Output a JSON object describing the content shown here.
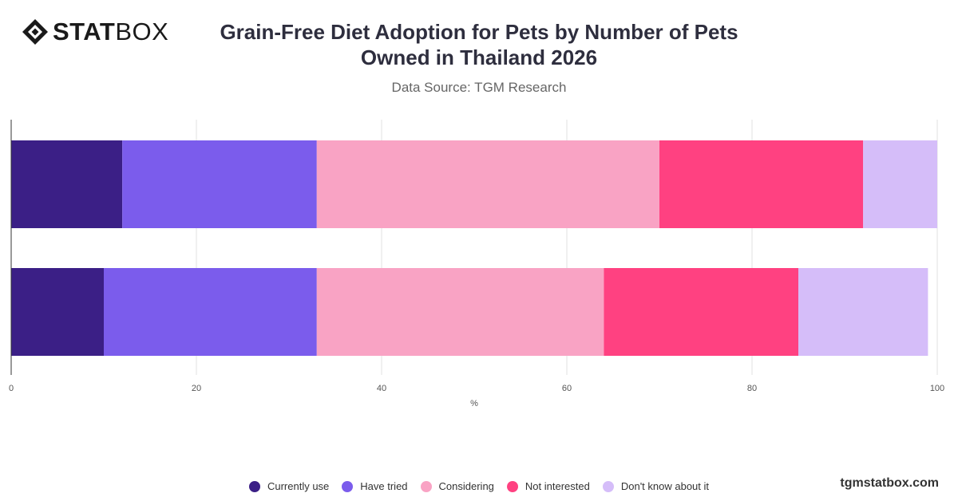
{
  "brand": {
    "logo_stat": "STAT",
    "logo_box": "BOX",
    "watermark": "tgmstatbox.com"
  },
  "chart_data": {
    "type": "bar",
    "orientation": "horizontal",
    "stacked": true,
    "title": "Grain-Free Diet Adoption for Pets by Number of Pets Owned in Thailand 2026",
    "subtitle": "Data Source: TGM Research",
    "xlabel": "%",
    "ylabel": "",
    "xlim": [
      0,
      100
    ],
    "xticks": [
      0,
      20,
      40,
      60,
      80,
      100
    ],
    "grid": true,
    "legend_position": "bottom",
    "categories": [
      "",
      ""
    ],
    "series": [
      {
        "name": "Currently use",
        "color": "#3b1f86",
        "values": [
          12,
          10
        ]
      },
      {
        "name": "Have tried",
        "color": "#7b5cec",
        "values": [
          21,
          23
        ]
      },
      {
        "name": "Considering",
        "color": "#f9a3c4",
        "values": [
          37,
          31
        ]
      },
      {
        "name": "Not interested",
        "color": "#ff4181",
        "values": [
          22,
          21
        ]
      },
      {
        "name": "Don't know about it",
        "color": "#d5bdf9",
        "values": [
          8,
          14
        ]
      }
    ]
  }
}
